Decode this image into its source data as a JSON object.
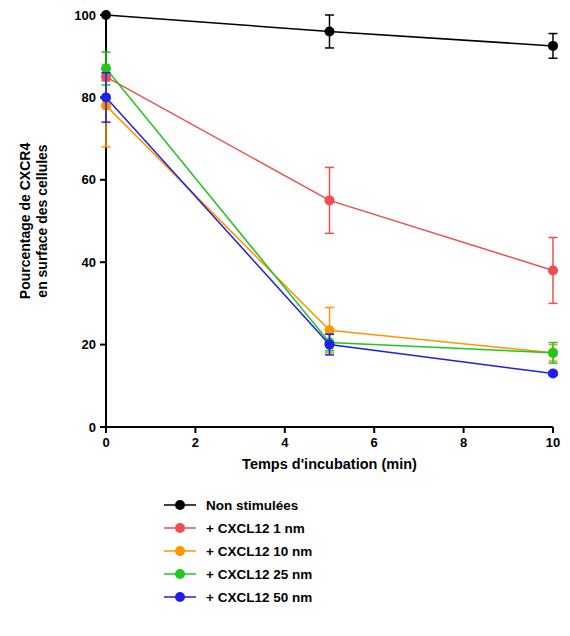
{
  "chart_data": {
    "type": "line",
    "x_label": "Temps d'incubation (min)",
    "y_label": [
      "Pourcentage de CXCR4",
      "en surface des cellules"
    ],
    "x": [
      0,
      5,
      10
    ],
    "xlim": [
      0,
      10
    ],
    "xticks": [
      0,
      2,
      4,
      6,
      8,
      10
    ],
    "ylim": [
      0,
      100
    ],
    "yticks": [
      0,
      20,
      40,
      60,
      80,
      100
    ],
    "grid": false,
    "legend": "bottom",
    "marker": "circle",
    "line_style": "solid",
    "series": [
      {
        "name": "Non stimulées",
        "color": "#000000",
        "values": [
          100,
          96,
          92.5
        ],
        "errors": [
          0,
          4,
          3
        ]
      },
      {
        "name": "+ CXCL12 1 nm",
        "color": "#f04e4e",
        "values": [
          85,
          55,
          38
        ],
        "errors": [
          1,
          8,
          8
        ]
      },
      {
        "name": "+ CXCL12 10 nm",
        "color": "#ff9500",
        "values": [
          78,
          23.5,
          18
        ],
        "errors": [
          10,
          5.5,
          2
        ]
      },
      {
        "name": "+ CXCL12 25 nm",
        "color": "#1ec81e",
        "values": [
          87,
          20.5,
          18
        ],
        "errors": [
          4,
          2,
          2.5
        ]
      },
      {
        "name": "+ CXCL12 50 nm",
        "color": "#1f1fe8",
        "values": [
          80,
          20,
          13
        ],
        "errors": [
          6,
          2.5,
          0.5
        ]
      }
    ]
  }
}
